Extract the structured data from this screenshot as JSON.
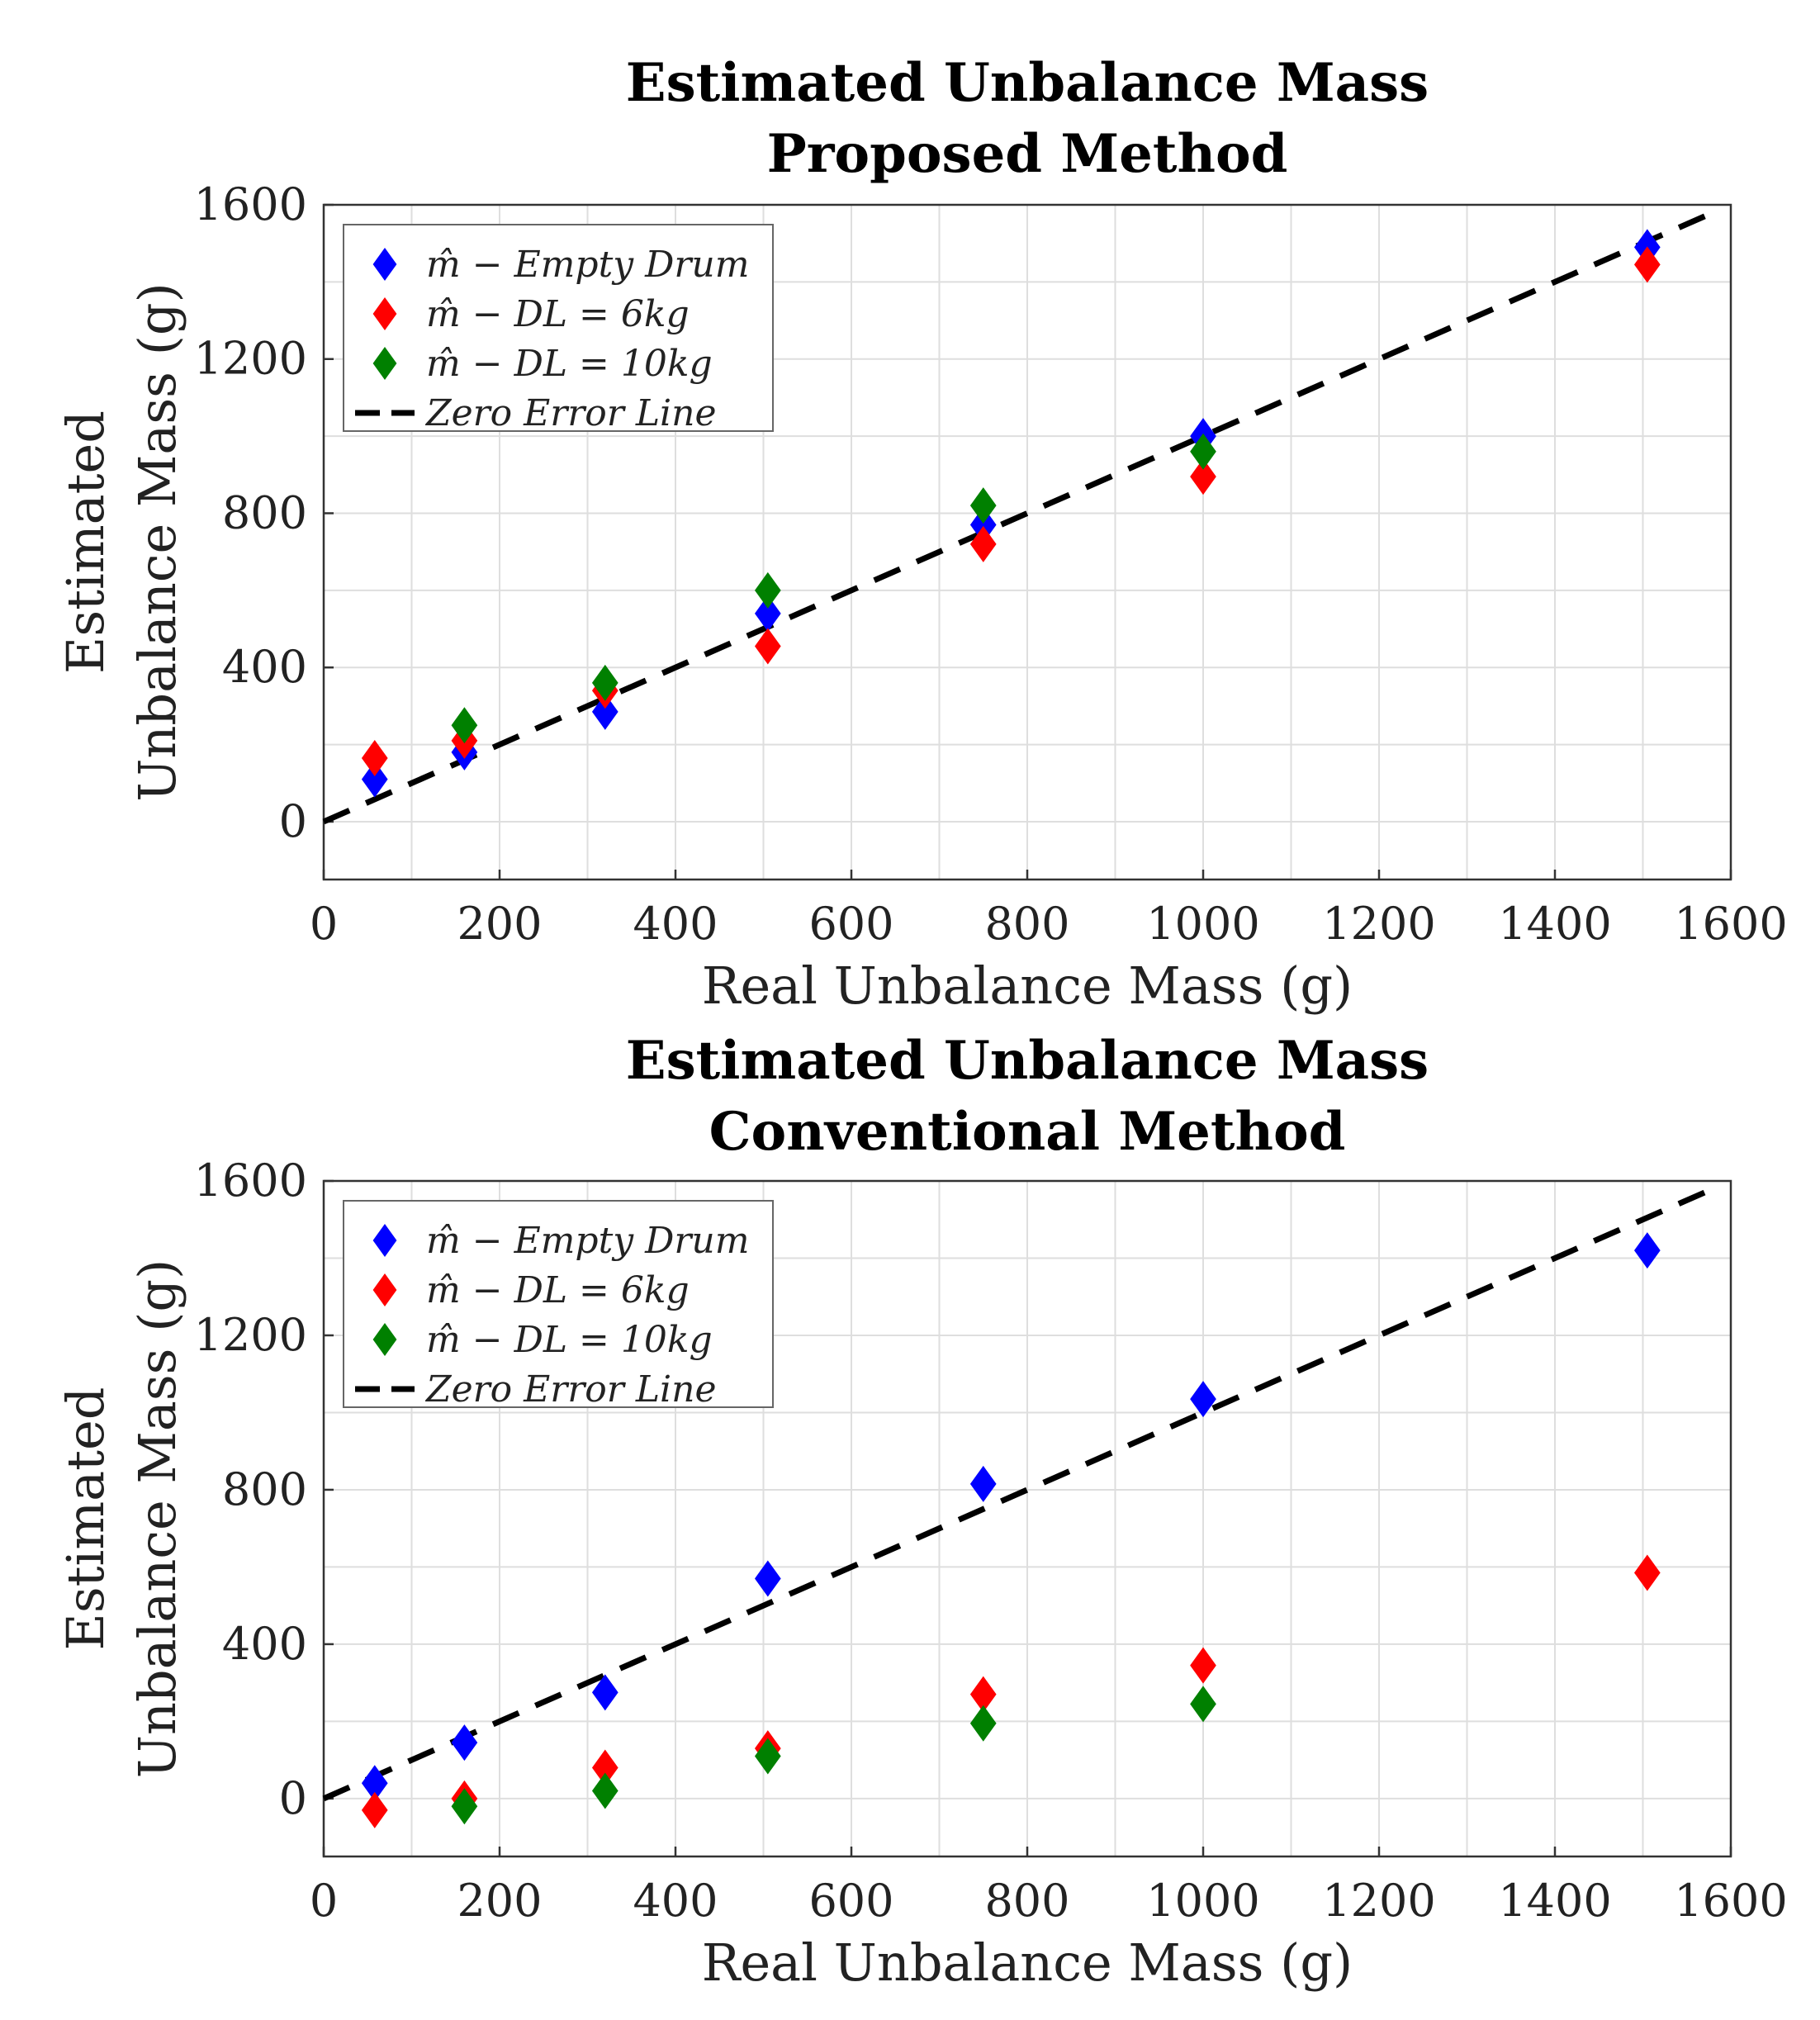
{
  "chart_data": [
    {
      "type": "scatter",
      "title": [
        "Estimated Unbalance Mass",
        "Proposed Method"
      ],
      "xlabel": "Real Unbalance Mass (g)",
      "ylabel": [
        "Estimated",
        "Unbalance Mass (g)"
      ],
      "xlim": [
        0,
        1600
      ],
      "ylim": [
        -150,
        1600
      ],
      "xticks": [
        "0",
        "200",
        "400",
        "600",
        "800",
        "1000",
        "1200",
        "1400",
        "1600"
      ],
      "yticks": [
        "0",
        "400",
        "800",
        "1200",
        "1600"
      ],
      "grid": true,
      "legend_position": "top-left",
      "zero_line": {
        "name": "Zero Error Line",
        "x": [
          0,
          1580
        ],
        "y": [
          0,
          1580
        ],
        "color": "#000000"
      },
      "series": [
        {
          "name": "m̂ − Empty Drum",
          "color": "#0000ff",
          "x": [
            58,
            160,
            320,
            505,
            750,
            1000,
            1505
          ],
          "y": [
            110,
            180,
            285,
            540,
            770,
            1000,
            1490
          ]
        },
        {
          "name": "m̂ − DL = 6kg",
          "color": "#ff0000",
          "x": [
            58,
            160,
            320,
            505,
            750,
            1000,
            1505
          ],
          "y": [
            165,
            210,
            340,
            455,
            720,
            895,
            1445
          ]
        },
        {
          "name": "m̂ − DL = 10kg",
          "color": "#008000",
          "x": [
            160,
            320,
            505,
            750,
            1000
          ],
          "y": [
            250,
            360,
            600,
            820,
            960
          ]
        }
      ]
    },
    {
      "type": "scatter",
      "title": [
        "Estimated Unbalance Mass",
        "Conventional Method"
      ],
      "xlabel": "Real Unbalance Mass (g)",
      "ylabel": [
        "Estimated",
        "Unbalance Mass (g)"
      ],
      "xlim": [
        0,
        1600
      ],
      "ylim": [
        -150,
        1600
      ],
      "xticks": [
        "0",
        "200",
        "400",
        "600",
        "800",
        "1000",
        "1200",
        "1400",
        "1600"
      ],
      "yticks": [
        "0",
        "400",
        "800",
        "1200",
        "1600"
      ],
      "grid": true,
      "legend_position": "top-left",
      "zero_line": {
        "name": "Zero Error Line",
        "x": [
          0,
          1580
        ],
        "y": [
          0,
          1580
        ],
        "color": "#000000"
      },
      "series": [
        {
          "name": "m̂ − Empty Drum",
          "color": "#0000ff",
          "x": [
            58,
            160,
            320,
            505,
            750,
            1000,
            1505
          ],
          "y": [
            40,
            145,
            275,
            570,
            815,
            1035,
            1420
          ]
        },
        {
          "name": "m̂ − DL = 6kg",
          "color": "#ff0000",
          "x": [
            58,
            160,
            320,
            505,
            750,
            1000,
            1505
          ],
          "y": [
            -30,
            0,
            80,
            130,
            270,
            345,
            585
          ]
        },
        {
          "name": "m̂ − DL = 10kg",
          "color": "#008000",
          "x": [
            160,
            320,
            505,
            750,
            1000
          ],
          "y": [
            -20,
            20,
            110,
            195,
            245
          ]
        }
      ]
    }
  ]
}
